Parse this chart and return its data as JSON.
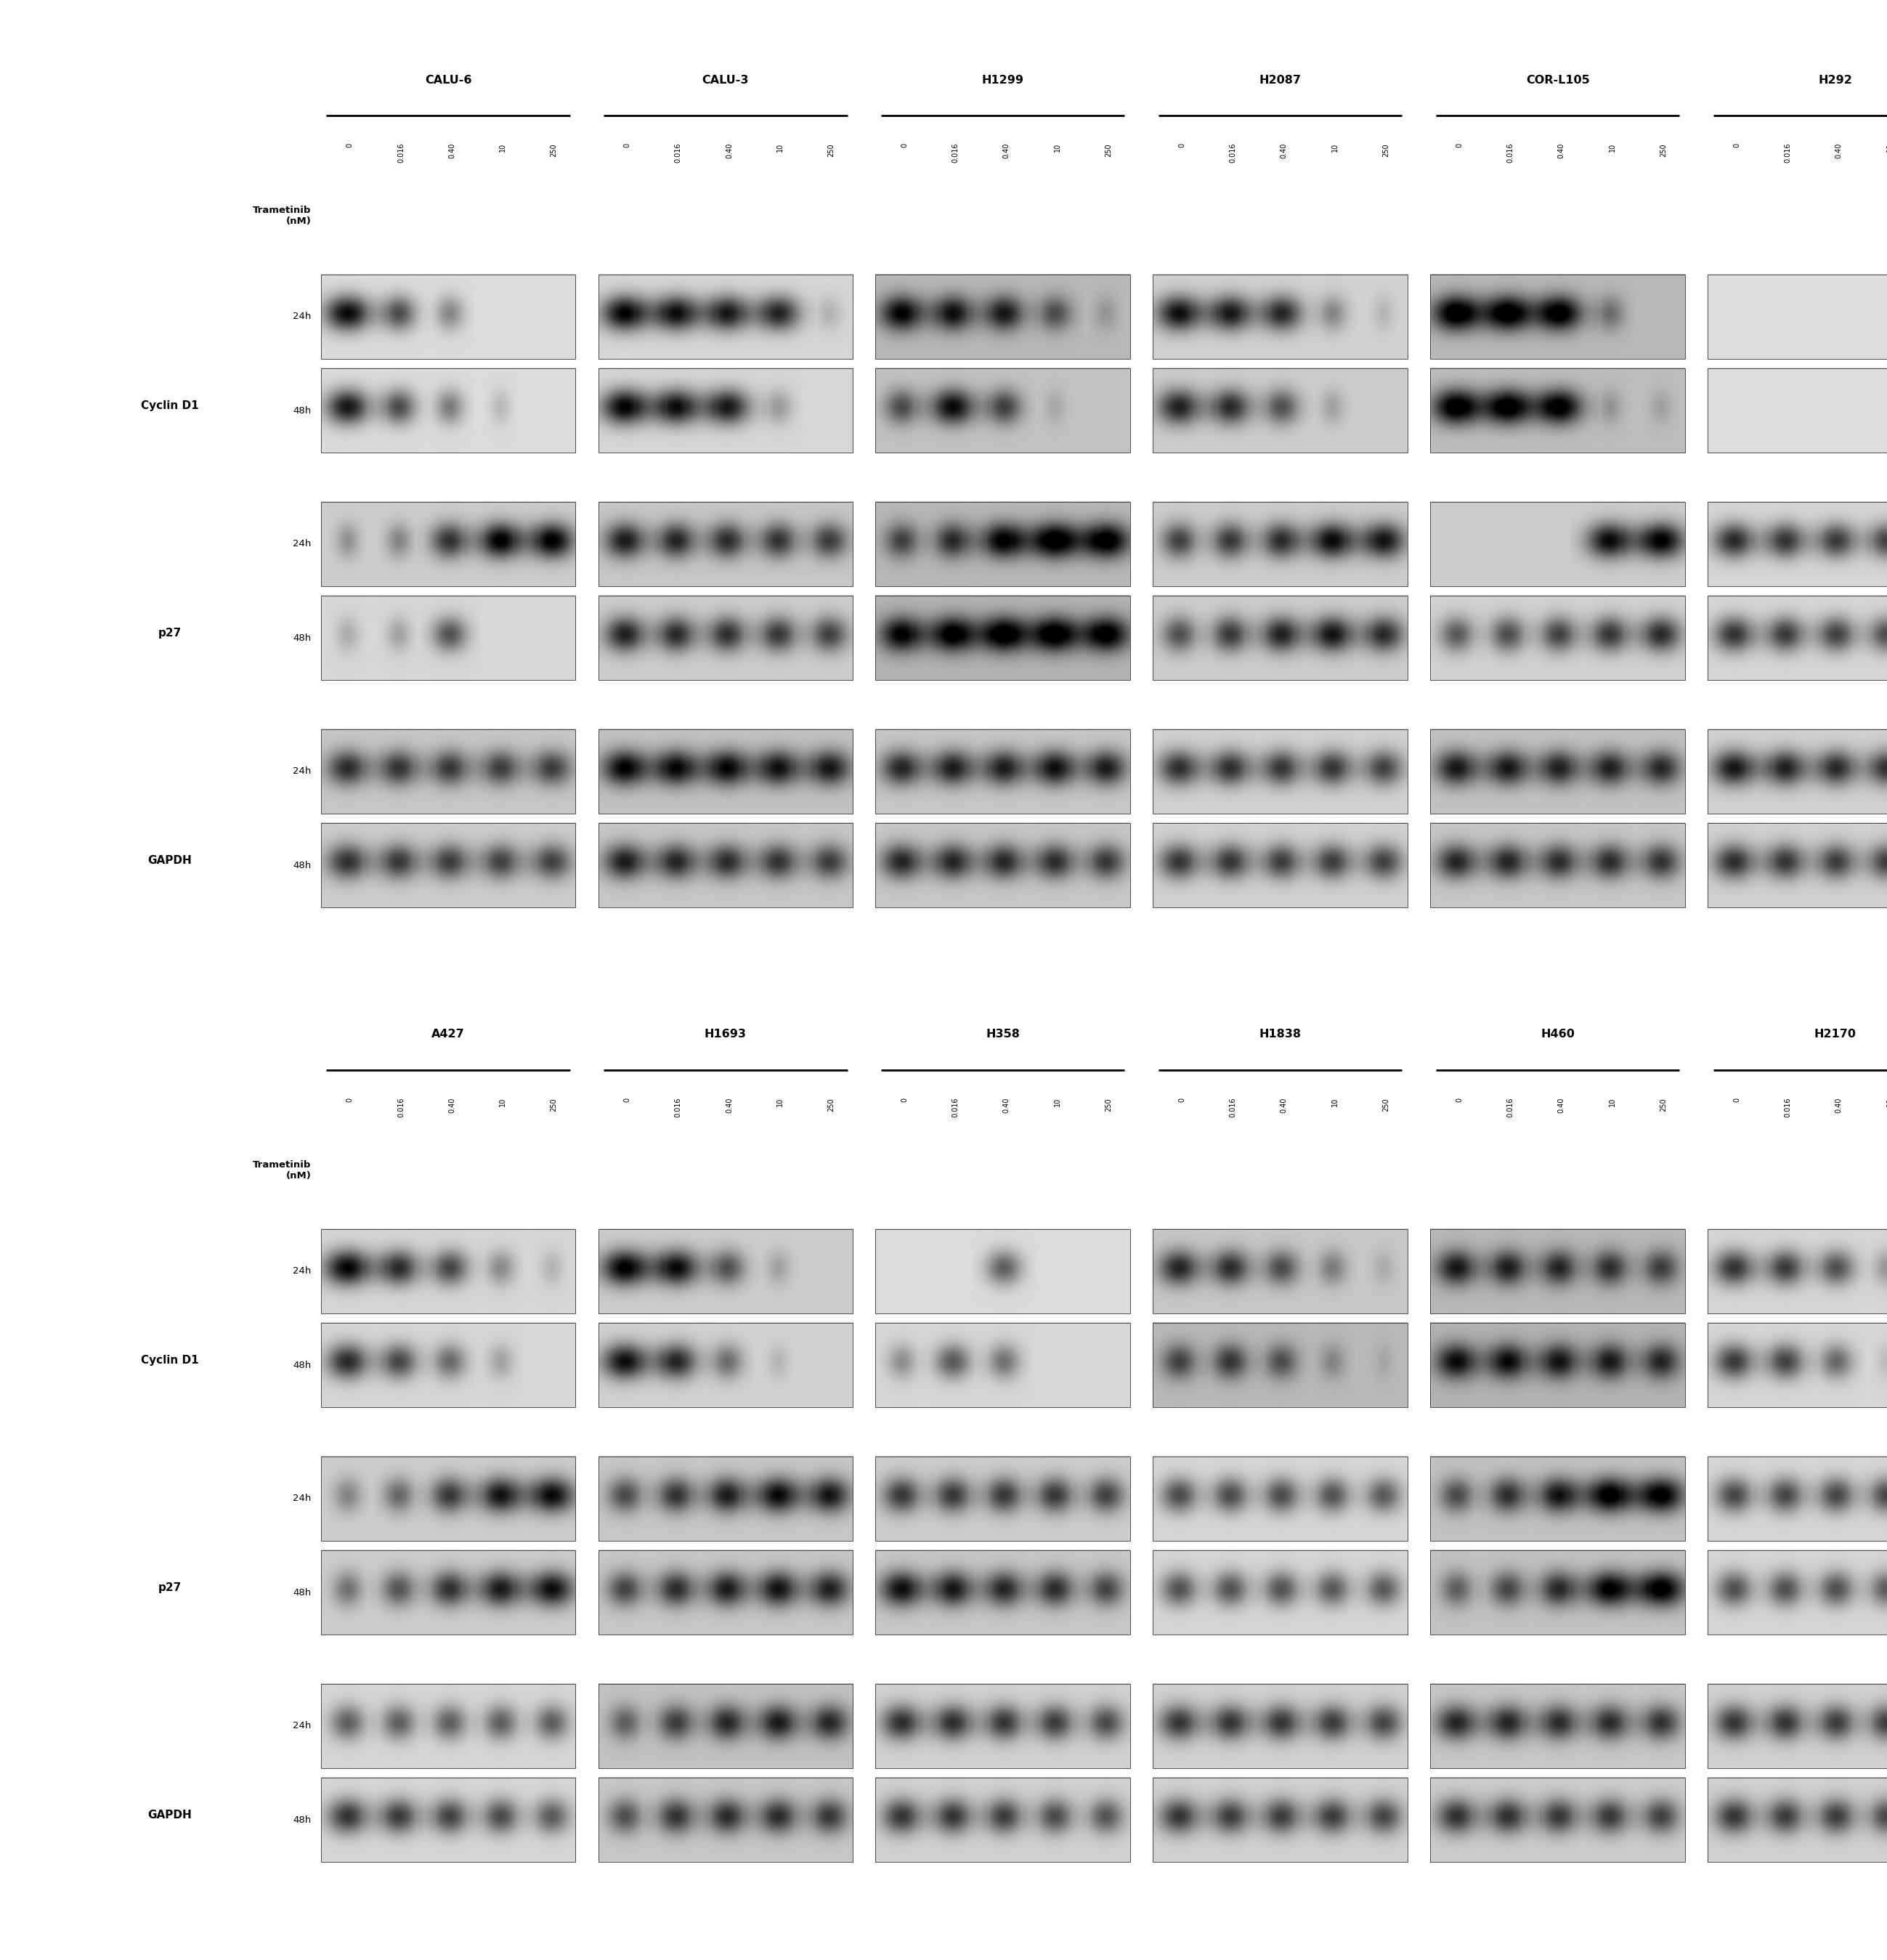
{
  "top_cell_lines": [
    "CALU-6",
    "CALU-3",
    "H1299",
    "H2087",
    "COR-L105",
    "H292"
  ],
  "bottom_cell_lines": [
    "A427",
    "H1693",
    "H358",
    "H1838",
    "H460",
    "H2170"
  ],
  "concentrations": [
    "0",
    "0.016",
    "0.40",
    "10",
    "250"
  ],
  "figure_width": 25.98,
  "figure_height": 26.98
}
